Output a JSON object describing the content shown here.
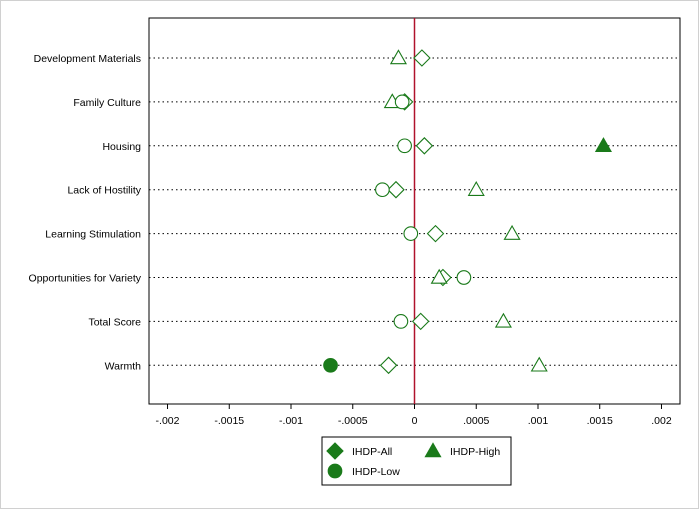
{
  "chart_data": {
    "type": "scatter",
    "orientation": "horizontal-dot-plot",
    "categories": [
      "Development Materials",
      "Family Culture",
      "Housing",
      "Lack of Hostility",
      "Learning Stimulation",
      "Opportunities for Variety",
      "Total Score",
      "Warmth"
    ],
    "xlim": [
      -0.00215,
      0.00215
    ],
    "x_ticks": [
      -0.002,
      -0.0015,
      -0.001,
      -0.0005,
      0,
      0.0005,
      0.001,
      0.0015,
      0.002
    ],
    "x_tick_labels": [
      "-.002",
      "-.0015",
      "-.001",
      "-.0005",
      "0",
      ".0005",
      ".001",
      ".0015",
      ".002"
    ],
    "reference_line_x": 0,
    "reference_line_color": "#b0122c",
    "series": [
      {
        "name": "IHDP-All",
        "marker": "diamond",
        "color": "#1a7a1a",
        "values": [
          6e-05,
          -8e-05,
          8e-05,
          -0.00015,
          0.00017,
          0.00023,
          5e-05,
          -0.00021
        ],
        "filled": [
          false,
          false,
          false,
          false,
          false,
          false,
          false,
          false
        ]
      },
      {
        "name": "IHDP-High",
        "marker": "triangle",
        "color": "#1a7a1a",
        "values": [
          -0.00013,
          -0.00018,
          0.00153,
          0.0005,
          0.00079,
          0.0002,
          0.00072,
          0.00101
        ],
        "filled": [
          false,
          false,
          true,
          false,
          false,
          false,
          false,
          false
        ]
      },
      {
        "name": "IHDP-Low",
        "marker": "circle",
        "color": "#1a7a1a",
        "values": [
          null,
          -0.0001,
          -8e-05,
          -0.00026,
          -3e-05,
          0.0004,
          -0.00011,
          -0.00068
        ],
        "filled": [
          false,
          false,
          false,
          false,
          false,
          false,
          false,
          true
        ]
      }
    ],
    "grid": "dotted horizontal per category",
    "legend_position": "bottom-center",
    "legend": [
      {
        "name": "IHDP-All",
        "marker": "diamond"
      },
      {
        "name": "IHDP-High",
        "marker": "triangle"
      },
      {
        "name": "IHDP-Low",
        "marker": "circle"
      }
    ]
  }
}
